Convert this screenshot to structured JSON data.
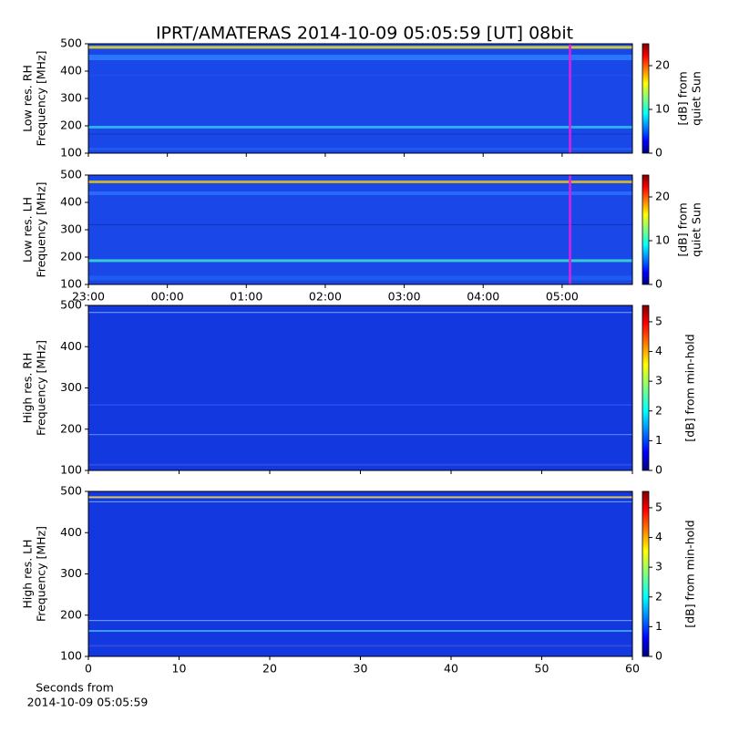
{
  "title": "IPRT/AMATERAS 2014-10-09 05:05:59 [UT]   08bit",
  "x_label": [
    "Seconds from",
    "2014-10-09 05:05:59"
  ],
  "chart_data": [
    {
      "type": "heatmap",
      "ylabel": [
        "Low res. RH",
        "Frequency [MHz]"
      ],
      "ylim": [
        100,
        500
      ],
      "yticks": [
        100,
        200,
        300,
        400,
        500
      ],
      "xlim": [
        23,
        29.89
      ],
      "xticks": [
        {
          "value": 23,
          "label": "23:00"
        },
        {
          "value": 24,
          "label": "00:00"
        },
        {
          "value": 25,
          "label": "01:00"
        },
        {
          "value": 26,
          "label": "02:00"
        },
        {
          "value": 27,
          "label": "03:00"
        },
        {
          "value": 28,
          "label": "04:00"
        },
        {
          "value": 29,
          "label": "05:00"
        }
      ],
      "show_xticklabels": false,
      "cursor_x": 29.1,
      "cursor_color": "#e020e0",
      "colorbar": {
        "label": [
          "[dB] from",
          "quiet Sun"
        ],
        "lim": [
          0,
          25
        ],
        "ticks": [
          0,
          10,
          20
        ]
      }
    },
    {
      "type": "heatmap",
      "ylabel": [
        "Low res. LH",
        "Frequency [MHz]"
      ],
      "ylim": [
        100,
        500
      ],
      "yticks": [
        100,
        200,
        300,
        400,
        500
      ],
      "xlim": [
        23,
        29.89
      ],
      "xticks": [
        {
          "value": 23,
          "label": "23:00"
        },
        {
          "value": 24,
          "label": "00:00"
        },
        {
          "value": 25,
          "label": "01:00"
        },
        {
          "value": 26,
          "label": "02:00"
        },
        {
          "value": 27,
          "label": "03:00"
        },
        {
          "value": 28,
          "label": "04:00"
        },
        {
          "value": 29,
          "label": "05:00"
        }
      ],
      "show_xticklabels": true,
      "cursor_x": 29.1,
      "cursor_color": "#e020e0",
      "colorbar": {
        "label": [
          "[dB] from",
          "quiet Sun"
        ],
        "lim": [
          0,
          25
        ],
        "ticks": [
          0,
          10,
          20
        ]
      }
    },
    {
      "type": "heatmap",
      "ylabel": [
        "High res. RH",
        "Frequency [MHz]"
      ],
      "ylim": [
        100,
        500
      ],
      "yticks": [
        100,
        200,
        300,
        400,
        500
      ],
      "xlim": [
        0,
        60
      ],
      "xticks": [
        0,
        10,
        20,
        30,
        40,
        50,
        60
      ],
      "show_xticklabels": false,
      "colorbar": {
        "label": [
          "[dB] from min-hold"
        ],
        "lim": [
          0,
          5.55
        ],
        "ticks": [
          0,
          1,
          2,
          3,
          4,
          5
        ]
      }
    },
    {
      "type": "heatmap",
      "ylabel": [
        "High res. LH",
        "Frequency [MHz]"
      ],
      "ylim": [
        100,
        500
      ],
      "yticks": [
        100,
        200,
        300,
        400,
        500
      ],
      "xlim": [
        0,
        60
      ],
      "xticks": [
        0,
        10,
        20,
        30,
        40,
        50,
        60
      ],
      "show_xticklabels": true,
      "colorbar": {
        "label": [
          "[dB] from min-hold"
        ],
        "lim": [
          0,
          5.55
        ],
        "ticks": [
          0,
          1,
          2,
          3,
          4,
          5
        ]
      }
    }
  ]
}
